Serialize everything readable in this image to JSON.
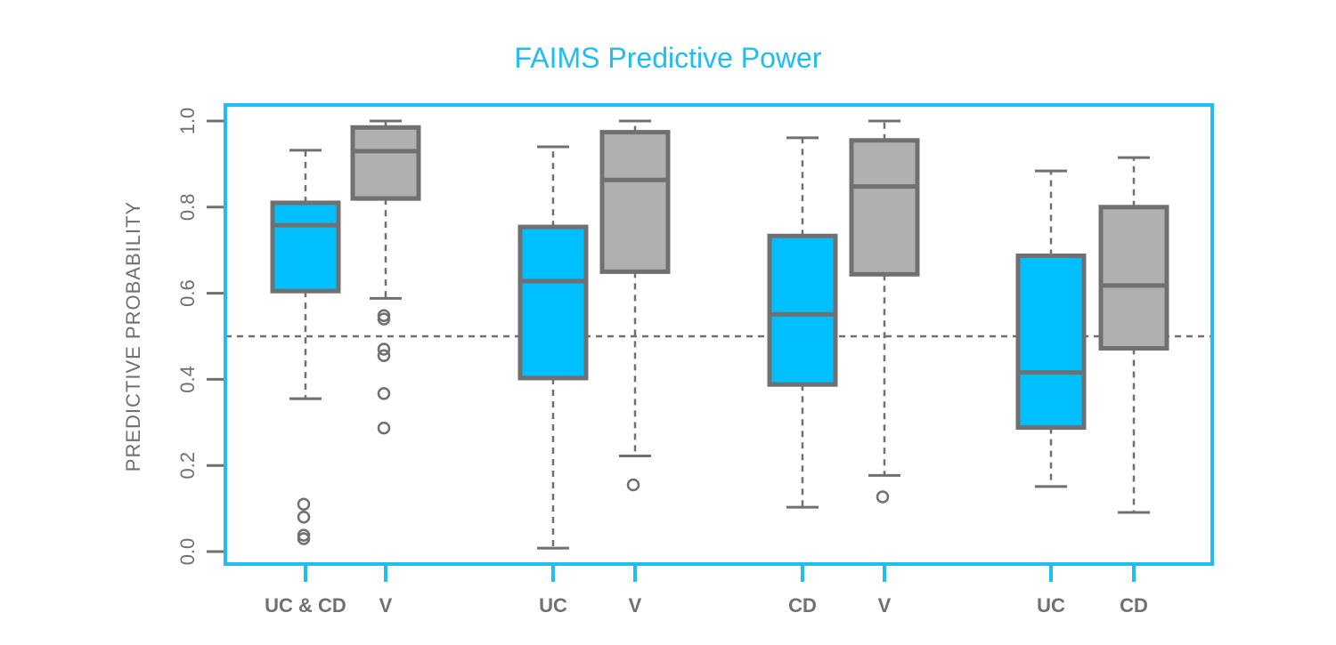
{
  "chart_data": {
    "type": "box",
    "title": "FAIMS Predictive Power",
    "xlabel": "",
    "ylabel": "PREDICTIVE PROBABILITY",
    "ylim": [
      0.0,
      1.0
    ],
    "yticks": [
      "0.0",
      "0.2",
      "0.4",
      "0.6",
      "0.8",
      "1.0"
    ],
    "reference_line": 0.5,
    "grid": false,
    "colors": {
      "title": "#1fbdf0",
      "frame": "#1fbdf0",
      "disease_fill": "#00bfff",
      "control_fill": "#b0b0b0",
      "box_stroke": "#707070",
      "text": "#707070"
    },
    "groups": [
      {
        "boxes": [
          {
            "label": "UC & CD",
            "kind": "disease",
            "whisker_low": 0.355,
            "q1": 0.605,
            "median": 0.758,
            "q3": 0.81,
            "whisker_high": 0.932,
            "outliers": [
              0.11,
              0.08,
              0.038,
              0.03
            ]
          },
          {
            "label": "V",
            "kind": "control",
            "whisker_low": 0.588,
            "q1": 0.82,
            "median": 0.93,
            "q3": 0.985,
            "whisker_high": 1.0,
            "outliers": [
              0.548,
              0.54,
              0.47,
              0.455,
              0.367,
              0.287
            ]
          }
        ]
      },
      {
        "boxes": [
          {
            "label": "UC",
            "kind": "disease",
            "whisker_low": 0.008,
            "q1": 0.403,
            "median": 0.628,
            "q3": 0.754,
            "whisker_high": 0.94,
            "outliers": []
          },
          {
            "label": "V",
            "kind": "control",
            "whisker_low": 0.222,
            "q1": 0.65,
            "median": 0.863,
            "q3": 0.974,
            "whisker_high": 1.0,
            "outliers": [
              0.155
            ]
          }
        ]
      },
      {
        "boxes": [
          {
            "label": "CD",
            "kind": "disease",
            "whisker_low": 0.103,
            "q1": 0.388,
            "median": 0.551,
            "q3": 0.733,
            "whisker_high": 0.961,
            "outliers": []
          },
          {
            "label": "V",
            "kind": "control",
            "whisker_low": 0.177,
            "q1": 0.644,
            "median": 0.848,
            "q3": 0.955,
            "whisker_high": 1.0,
            "outliers": [
              0.127
            ]
          }
        ]
      },
      {
        "boxes": [
          {
            "label": "UC",
            "kind": "disease",
            "whisker_low": 0.151,
            "q1": 0.288,
            "median": 0.416,
            "q3": 0.687,
            "whisker_high": 0.884,
            "outliers": []
          },
          {
            "label": "CD",
            "kind": "control",
            "whisker_low": 0.091,
            "q1": 0.472,
            "median": 0.618,
            "q3": 0.8,
            "whisker_high": 0.915,
            "outliers": []
          }
        ]
      }
    ]
  }
}
